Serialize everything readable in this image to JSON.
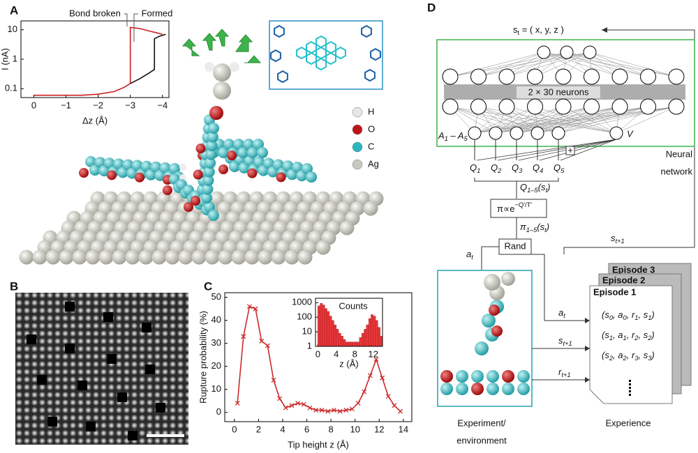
{
  "panel_labels": [
    "A",
    "B",
    "C",
    "D"
  ],
  "chart_data": [
    {
      "type": "line",
      "xlabel": "Δz (Å)",
      "ylabel": "I (nA)",
      "y_log": true,
      "xlim": [
        0.4,
        -4.2
      ],
      "ylim": [
        0.05,
        20
      ],
      "xticks": [
        0,
        {
          "value": -1,
          "label": "−1"
        },
        {
          "value": -2,
          "label": "−2"
        },
        {
          "value": -3,
          "label": "−3"
        },
        {
          "value": -4,
          "label": "−4"
        }
      ],
      "yticks": [
        0.1,
        1,
        10
      ],
      "annotations": [
        "Bond broken",
        "Formed"
      ],
      "series": [
        {
          "color": "#cc1f1f",
          "x": [
            0,
            -0.5,
            -1,
            -1.5,
            -2,
            -2.5,
            -2.8,
            -3.0,
            -3.0,
            -3.3,
            -3.6,
            -3.8,
            -4.0
          ],
          "values": [
            0.06,
            0.06,
            0.06,
            0.06,
            0.065,
            0.08,
            0.11,
            0.15,
            12,
            11,
            9,
            8,
            7
          ]
        },
        {
          "color": "#111111",
          "x": [
            -3.0,
            -3.3,
            -3.6,
            -3.75,
            -3.75,
            -3.9,
            -4.1
          ],
          "values": [
            0.15,
            0.22,
            0.35,
            0.45,
            5,
            6,
            7
          ]
        }
      ]
    },
    {
      "type": "line",
      "xlabel": "Tip height z (Å)",
      "ylabel": "Rupture probability (%)",
      "xlim": [
        -0.8,
        14.7
      ],
      "ylim": [
        -4,
        52
      ],
      "xticks": [
        0,
        2,
        4,
        6,
        8,
        10,
        12,
        14
      ],
      "yticks": [
        0,
        10,
        20,
        30,
        40,
        50
      ],
      "series": [
        {
          "color": "#cc2a2a",
          "marker": "x",
          "x": [
            0.25,
            0.75,
            1.25,
            1.75,
            2.25,
            2.75,
            3.25,
            3.75,
            4.25,
            4.75,
            5.25,
            5.75,
            6.25,
            6.75,
            7.25,
            7.75,
            8.25,
            8.75,
            9.25,
            9.75,
            10.25,
            10.75,
            11.25,
            11.75,
            12.25,
            12.75,
            13.25,
            13.75
          ],
          "values": [
            4,
            33,
            46,
            45,
            31,
            29,
            14,
            6,
            2,
            3,
            4,
            3.5,
            2,
            1,
            1,
            0.5,
            1,
            0.5,
            1,
            1.5,
            4,
            9,
            16,
            23,
            15,
            7,
            3,
            0.5
          ]
        }
      ]
    },
    {
      "type": "histogram",
      "title": "Counts",
      "xlabel": "z (Å)",
      "y_log": true,
      "color": "#e8383b",
      "xlim": [
        -0.5,
        14
      ],
      "ylim": [
        1,
        2000
      ],
      "xticks": [
        0,
        4,
        8,
        12
      ],
      "yticks": [
        1,
        10,
        100,
        1000
      ],
      "bins": [
        0,
        0.5,
        1,
        1.5,
        2,
        2.5,
        3,
        3.5,
        4,
        4.5,
        5,
        5.5,
        6,
        6.5,
        7,
        7.5,
        8,
        8.5,
        9,
        9.5,
        10,
        10.5,
        11,
        11.5,
        12,
        12.5,
        13,
        13.5,
        14
      ],
      "values": [
        600,
        900,
        700,
        400,
        250,
        120,
        60,
        30,
        15,
        8,
        5,
        3,
        2,
        2,
        2,
        2,
        2,
        2,
        4,
        8,
        15,
        30,
        80,
        150,
        120,
        60,
        20,
        5
      ]
    }
  ],
  "atoms": [
    {
      "label": "H",
      "color": "#e6e6e6"
    },
    {
      "label": "O",
      "color": "#c01515"
    },
    {
      "label": "C",
      "color": "#2ab7bf"
    },
    {
      "label": "Ag",
      "color": "#c8c8c0"
    }
  ],
  "network": {
    "state": [
      {
        "text": "s"
      },
      {
        "sub": "t"
      },
      {
        "text": " = (  x,   y,   z  )"
      }
    ],
    "hidden": "2 × 30 neurons",
    "actions": [
      {
        "text": "A"
      },
      {
        "sub": "1"
      },
      {
        "text": " – A"
      },
      {
        "sub": "5"
      }
    ],
    "value": "V",
    "plus": "+",
    "label": [
      "Neural",
      "network"
    ],
    "q": [
      [
        {
          "text": "Q"
        },
        {
          "sub": "1"
        }
      ],
      [
        {
          "text": "Q"
        },
        {
          "sub": "2"
        }
      ],
      [
        {
          "text": "Q"
        },
        {
          "sub": "3"
        }
      ],
      [
        {
          "text": "Q"
        },
        {
          "sub": "4"
        }
      ],
      [
        {
          "text": "Q"
        },
        {
          "sub": "5"
        }
      ]
    ],
    "q_out": [
      {
        "text": "Q"
      },
      {
        "sub": "1–5"
      },
      {
        "text": "(s"
      },
      {
        "sub": "t"
      },
      {
        "text": ")"
      }
    ],
    "policy": [
      {
        "text": "π∝e"
      },
      {
        "sup": "−Q'/T'"
      }
    ],
    "pi_out": [
      {
        "text": "π"
      },
      {
        "sub": "1–5"
      },
      {
        "text": "(s"
      },
      {
        "sub": "t"
      },
      {
        "text": ")"
      }
    ],
    "rand": "Rand",
    "action": [
      {
        "text": "a"
      },
      {
        "sub": "t"
      }
    ],
    "next_state": [
      {
        "text": "s"
      },
      {
        "sub": "t+1"
      }
    ]
  },
  "environment": {
    "label": [
      "Experiment/",
      "environment"
    ]
  },
  "experience": {
    "label": "Experience",
    "episodes": [
      "Episode 3",
      "Episode 2",
      "Episode 1"
    ],
    "tuples": [
      [
        {
          "text": "(s"
        },
        {
          "sub": "0"
        },
        {
          "text": ", a"
        },
        {
          "sub": "0"
        },
        {
          "text": ", r"
        },
        {
          "sub": "1"
        },
        {
          "text": ", s"
        },
        {
          "sub": "1"
        },
        {
          "text": ")"
        }
      ],
      [
        {
          "text": "(s"
        },
        {
          "sub": "1"
        },
        {
          "text": ", a"
        },
        {
          "sub": "1"
        },
        {
          "text": ", r"
        },
        {
          "sub": "2"
        },
        {
          "text": ", s"
        },
        {
          "sub": "2"
        },
        {
          "text": ")"
        }
      ],
      [
        {
          "text": "(s"
        },
        {
          "sub": "2"
        },
        {
          "text": ", a"
        },
        {
          "sub": "2"
        },
        {
          "text": ", r"
        },
        {
          "sub": "3"
        },
        {
          "text": ", s"
        },
        {
          "sub": "3"
        },
        {
          "text": ")"
        }
      ]
    ],
    "inputs": [
      [
        {
          "text": "a"
        },
        {
          "sub": "t"
        }
      ],
      [
        {
          "text": "s"
        },
        {
          "sub": "t+1"
        }
      ],
      [
        {
          "text": "r"
        },
        {
          "sub": "t+1"
        }
      ]
    ]
  }
}
